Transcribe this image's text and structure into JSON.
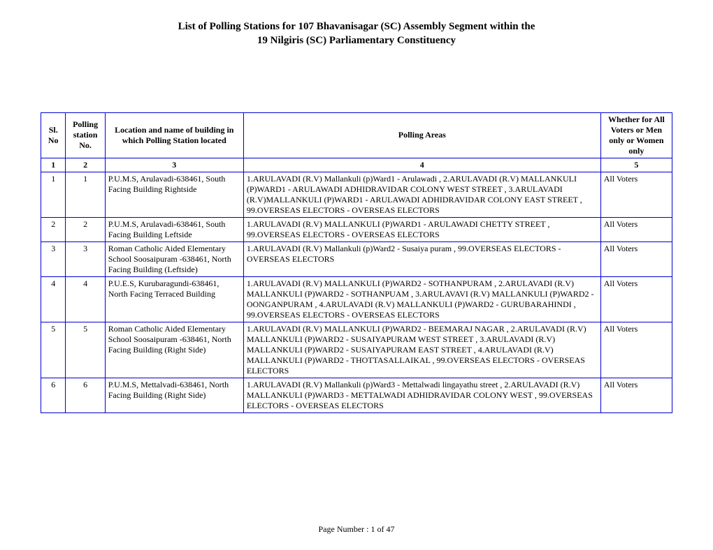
{
  "title_line1": "List of Polling Stations for  107   Bhavanisagar (SC)  Assembly Segment within the",
  "title_line2": "19   Nilgiris (SC) Parliamentary Constituency",
  "footer": "Page Number : 1 of 47",
  "table": {
    "border_color": "#0000d0",
    "header_fontsize": 12,
    "cell_fontsize": 12,
    "columns": [
      {
        "label": "Sl. No",
        "align": "center"
      },
      {
        "label": "Polling station No.",
        "align": "center"
      },
      {
        "label": "Location and name of building in which  Polling Station located",
        "align": "center"
      },
      {
        "label": "Polling Areas",
        "align": "center"
      },
      {
        "label": "Whether for All Voters or Men only or Women only",
        "align": "center"
      }
    ],
    "number_row": [
      "1",
      "2",
      "3",
      "4",
      "5"
    ],
    "rows": [
      {
        "sl": "1",
        "ps": "1",
        "loc": "P.U.M.S,  Arulavadi-638461, South Facing Building Rightside",
        "area": "1.ARULAVADI (R.V) Mallankuli  (p)Ward1 - Arulawadi , 2.ARULAVADI (R.V) MALLANKULI  (P)WARD1 - ARULAWADI  ADHIDRAVIDAR COLONY  WEST STREET , 3.ARULAVADI  (R.V)MALLANKULI  (P)WARD1 - ARULAWADI   ADHIDRAVIDAR COLONY  EAST STREET , 99.OVERSEAS ELECTORS - OVERSEAS ELECTORS",
        "whether": "All Voters"
      },
      {
        "sl": "2",
        "ps": "2",
        "loc": "P.U.M.S,  Arulavadi-638461, South Facing Building Leftside",
        "area": "1.ARULAVADI (R.V) MALLANKULI  (P)WARD1 - ARULAWADI  CHETTY STREET , 99.OVERSEAS ELECTORS - OVERSEAS ELECTORS",
        "whether": "All Voters"
      },
      {
        "sl": "3",
        "ps": "3",
        "loc": "Roman Catholic Aided Elementary School Soosaipuram -638461, North Facing  Building (Leftside)",
        "area": "1.ARULAVADI (R.V) Mallankuli  (p)Ward2 - Susaiya puram , 99.OVERSEAS ELECTORS - OVERSEAS ELECTORS",
        "whether": "All Voters"
      },
      {
        "sl": "4",
        "ps": "4",
        "loc": "P.U.E.S,  Kurubaragundi-638461, North Facing Terraced Building",
        "area": "1.ARULAVADI (R.V) MALLANKULI  (P)WARD2 - SOTHANPURAM , 2.ARULAVADI (R.V) MALLANKULI  (P)WARD2 - SOTHANPUAM , 3.ARULAVAVI (R.V) MALLANKULI  (P)WARD2 - OONGANPURAM , 4.ARULAVADI (R.V) MALLANKULI  (P)WARD2 - GURUBARAHINDI , 99.OVERSEAS ELECTORS - OVERSEAS ELECTORS",
        "whether": "All Voters"
      },
      {
        "sl": "5",
        "ps": "5",
        "loc": "Roman Catholic Aided Elementary School Soosaipuram -638461, North Facing Building (Right Side)",
        "area": "1.ARULAVADI (R.V) MALLANKULI  (P)WARD2 - BEEMARAJ NAGAR , 2.ARULAVADI (R.V) MALLANKULI  (P)WARD2 - SUSAIYAPURAM  WEST STREET , 3.ARULAVADI (R.V) MALLANKULI  (P)WARD2 - SUSAIYAPURAM  EAST STREET , 4.ARULAVADI (R.V) MALLANKULI  (P)WARD2 - THOTTASALLAIKAL , 99.OVERSEAS ELECTORS - OVERSEAS ELECTORS",
        "whether": "All Voters"
      },
      {
        "sl": "6",
        "ps": "6",
        "loc": "P.U.M.S,  Mettalvadi-638461, North Facing Building (Right Side)",
        "area": "1.ARULAVADI (R.V) Mallankuli  (p)Ward3 - Mettalwadi lingayathu street , 2.ARULAVADI (R.V) MALLANKULI  (P)WARD3 - METTALWADI ADHIDRAVIDAR COLONY WEST , 99.OVERSEAS ELECTORS - OVERSEAS ELECTORS",
        "whether": "All Voters"
      }
    ]
  }
}
